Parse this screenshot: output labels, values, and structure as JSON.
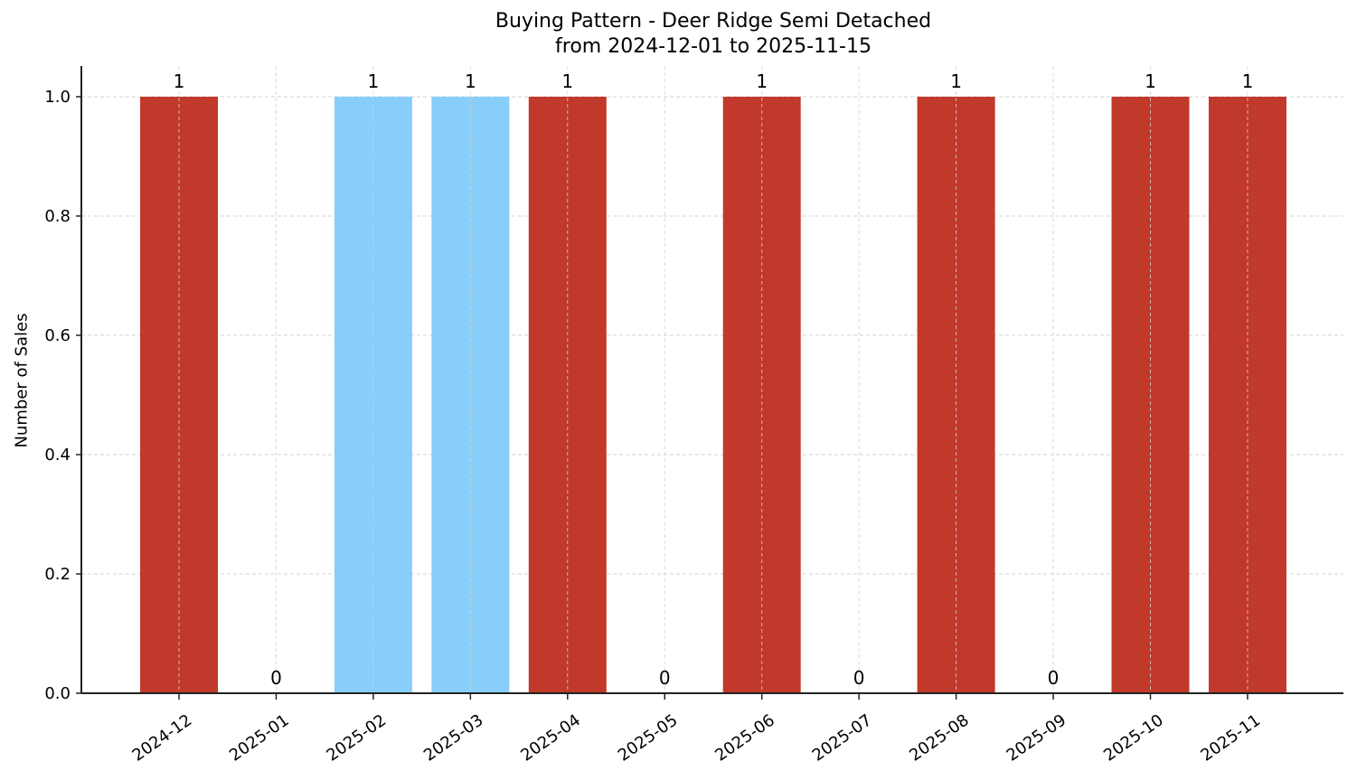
{
  "chart_data": {
    "type": "bar",
    "title": "Buying Pattern - Deer Ridge Semi Detached",
    "subtitle": "from 2024-12-01 to 2025-11-15",
    "xlabel": "",
    "ylabel": "Number of Sales",
    "categories": [
      "2024-12",
      "2025-01",
      "2025-02",
      "2025-03",
      "2025-04",
      "2025-05",
      "2025-06",
      "2025-07",
      "2025-08",
      "2025-09",
      "2025-10",
      "2025-11"
    ],
    "values": [
      1,
      0,
      1,
      1,
      1,
      0,
      1,
      0,
      1,
      0,
      1,
      1
    ],
    "bar_colors": [
      "#c0392b",
      "#c0392b",
      "#87cefa",
      "#87cefa",
      "#c0392b",
      "#c0392b",
      "#c0392b",
      "#c0392b",
      "#c0392b",
      "#c0392b",
      "#c0392b",
      "#c0392b"
    ],
    "data_labels": [
      "1",
      "0",
      "1",
      "1",
      "1",
      "0",
      "1",
      "0",
      "1",
      "0",
      "1",
      "1"
    ],
    "yticks": [
      0.0,
      0.2,
      0.4,
      0.6,
      0.8,
      1.0
    ],
    "ytick_labels": [
      "0.0",
      "0.2",
      "0.4",
      "0.6",
      "0.8",
      "1.0"
    ],
    "ylim": [
      0,
      1.05
    ],
    "grid": true,
    "legend": null,
    "x_tick_rotation": 35
  },
  "colors": {
    "primary_bar": "#c0392b",
    "highlight_bar": "#87cefa",
    "grid": "#d3d3d3",
    "axis": "#222222"
  }
}
